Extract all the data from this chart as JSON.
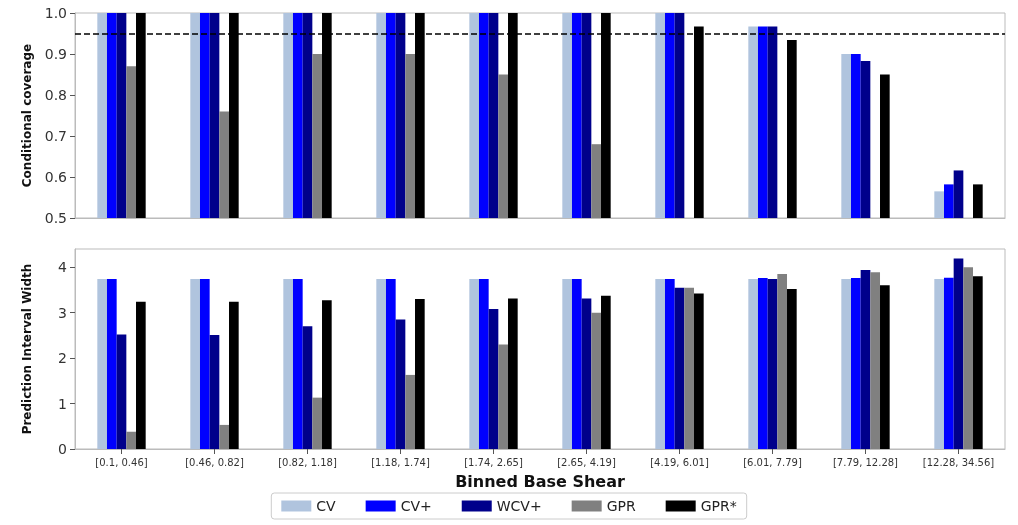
{
  "chart_data": [
    {
      "type": "bar",
      "ylabel": "Conditional coverage",
      "categories": [
        null,
        null,
        null,
        null,
        null,
        null,
        null,
        null,
        null,
        null
      ],
      "series": [
        {
          "color": "#b0c4de",
          "values": [
            1,
            1,
            1,
            1,
            1,
            1,
            1,
            0.967,
            0.9,
            0.565
          ]
        },
        {
          "color": "#0000ff",
          "values": [
            1,
            1,
            1,
            1,
            1,
            1,
            1,
            0.967,
            0.9,
            0.582
          ]
        },
        {
          "color": "#00008b",
          "values": [
            1,
            1,
            1,
            1,
            1,
            1,
            1,
            0.967,
            0.883,
            0.616
          ]
        },
        {
          "color": "#808080",
          "values": [
            0.87,
            0.76,
            0.9,
            0.9,
            0.85,
            0.68,
            null,
            null,
            null,
            null
          ]
        },
        {
          "color": "#000000",
          "values": [
            1,
            1,
            1,
            1,
            1,
            1,
            0.967,
            0.934,
            0.85,
            0.582
          ]
        }
      ],
      "ylim": [
        0.5,
        1
      ],
      "yticks": [
        0.5,
        0.6,
        0.7,
        0.8,
        0.9,
        {
          "value": 1,
          "label": "1.0"
        }
      ],
      "ref_lines": [
        {
          "axis": "y",
          "value": 0.95,
          "color": "#000000",
          "line_style": "dashed"
        }
      ],
      "tick_labels": "y",
      "legend": false
    },
    {
      "type": "bar",
      "ylabel": "Prediction Interval Width",
      "xlabel": "Binned Base Shear",
      "categories": [
        "[0.1, 0.46]",
        "[0.46, 0.82]",
        "[0.82, 1.18]",
        "[1.18, 1.74]",
        "[1.74, 2.65]",
        "[2.65, 4.19]",
        "[4.19, 6.01]",
        "[6.01, 7.79]",
        "[7.79, 12.28]",
        "[12.28, 34.56]"
      ],
      "series": [
        {
          "name": "CV",
          "color": "#b0c4de",
          "values": [
            3.74,
            3.74,
            3.74,
            3.74,
            3.74,
            3.74,
            3.74,
            3.74,
            3.74,
            3.74
          ]
        },
        {
          "name": "CV+",
          "color": "#0000ff",
          "values": [
            3.74,
            3.74,
            3.74,
            3.74,
            3.74,
            3.74,
            3.74,
            3.76,
            3.76,
            3.77
          ]
        },
        {
          "name": "WCV+",
          "color": "#00008b",
          "values": [
            2.52,
            2.51,
            2.7,
            2.85,
            3.08,
            3.31,
            3.55,
            3.74,
            3.94,
            4.19
          ]
        },
        {
          "name": "GPR",
          "color": "#808080",
          "values": [
            0.38,
            0.53,
            1.13,
            1.63,
            2.3,
            3.0,
            3.55,
            3.85,
            3.89,
            4.0
          ]
        },
        {
          "name": "GPR*",
          "color": "#000000",
          "values": [
            3.24,
            3.24,
            3.27,
            3.3,
            3.31,
            3.37,
            3.42,
            3.52,
            3.6,
            3.8
          ]
        }
      ],
      "ylim": [
        0,
        4.4
      ],
      "yticks": [
        0,
        1,
        2,
        3,
        4
      ],
      "legend": "bottom"
    }
  ]
}
